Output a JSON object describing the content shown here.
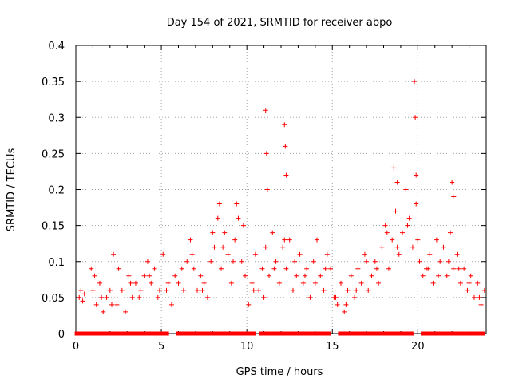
{
  "chart_data": {
    "type": "scatter",
    "title": "Day 154 of 2021, SRMTID for receiver abpo",
    "xlabel": "GPS time / hours",
    "ylabel": "SRMTID / TECUs",
    "xlim": [
      0,
      24
    ],
    "ylim": [
      0,
      0.4
    ],
    "grid": true,
    "marker": "+",
    "color": "#ff0000",
    "xticks": [
      0,
      5,
      10,
      15,
      20
    ],
    "yticks": [
      0,
      0.05,
      0.1,
      0.15,
      0.2,
      0.25,
      0.3,
      0.35,
      0.4
    ],
    "xtick_labels": [
      "0",
      "5",
      "10",
      "15",
      "20"
    ],
    "ytick_labels": [
      "0",
      "0.05",
      "0.1",
      "0.15",
      "0.2",
      "0.25",
      "0.3",
      "0.35",
      "0.4"
    ],
    "series": [
      {
        "name": "SRMTID",
        "x": [
          0.2,
          0.3,
          0.4,
          0.5,
          0.9,
          1.0,
          1.2,
          1.4,
          1.6,
          1.8,
          2.0,
          2.2,
          2.4,
          2.7,
          2.9,
          3.1,
          3.3,
          3.5,
          3.8,
          4.0,
          4.2,
          4.4,
          4.6,
          4.8,
          5.1,
          5.3,
          5.6,
          5.8,
          6.0,
          6.3,
          6.5,
          6.7,
          6.9,
          7.1,
          7.3,
          7.5,
          7.7,
          7.9,
          8.1,
          8.3,
          8.5,
          8.7,
          8.9,
          9.1,
          9.3,
          9.5,
          9.7,
          9.9,
          10.1,
          10.3,
          10.5,
          10.7,
          10.9,
          11.1,
          11.3,
          11.5,
          11.7,
          11.9,
          12.1,
          12.3,
          12.5,
          12.7,
          12.9,
          13.1,
          13.3,
          13.5,
          13.7,
          13.9,
          14.1,
          14.3,
          14.5,
          14.7,
          14.9,
          15.1,
          15.3,
          15.5,
          15.7,
          15.9,
          16.1,
          16.3,
          16.5,
          16.7,
          16.9,
          17.1,
          17.3,
          17.5,
          17.7,
          17.9,
          18.1,
          18.3,
          18.5,
          18.7,
          18.9,
          19.1,
          19.3,
          19.5,
          19.7,
          19.9,
          20.1,
          20.3,
          20.5,
          20.7,
          20.9,
          21.1,
          21.3,
          21.5,
          21.7,
          21.9,
          22.1,
          22.3,
          22.5,
          22.7,
          22.9,
          23.1,
          23.3,
          23.5,
          23.7,
          23.9,
          0.3,
          1.1,
          1.5,
          2.1,
          2.5,
          3.2,
          3.7,
          4.3,
          4.9,
          5.4,
          6.2,
          6.8,
          7.4,
          8.0,
          8.6,
          9.2,
          9.8,
          10.4,
          11.0,
          11.6,
          12.2,
          12.8,
          13.4,
          14.0,
          14.6,
          15.2,
          15.8,
          16.4,
          17.0,
          17.6,
          18.2,
          18.8,
          19.4,
          20.0,
          20.6,
          21.2,
          21.8,
          22.4,
          23.0,
          23.6,
          11.1,
          11.15,
          11.2,
          12.2,
          12.25,
          12.3,
          19.8,
          19.85,
          19.9,
          8.4,
          9.4,
          18.6,
          18.8,
          22.0,
          22.1
        ],
        "y": [
          0.05,
          0.06,
          0.045,
          0.055,
          0.09,
          0.06,
          0.04,
          0.07,
          0.03,
          0.05,
          0.06,
          0.11,
          0.04,
          0.06,
          0.03,
          0.08,
          0.05,
          0.07,
          0.06,
          0.08,
          0.1,
          0.07,
          0.09,
          0.05,
          0.11,
          0.06,
          0.04,
          0.08,
          0.07,
          0.06,
          0.1,
          0.13,
          0.09,
          0.06,
          0.08,
          0.07,
          0.05,
          0.1,
          0.12,
          0.16,
          0.09,
          0.14,
          0.11,
          0.07,
          0.13,
          0.16,
          0.1,
          0.08,
          0.04,
          0.07,
          0.11,
          0.06,
          0.09,
          0.12,
          0.08,
          0.14,
          0.1,
          0.07,
          0.12,
          0.09,
          0.13,
          0.06,
          0.08,
          0.11,
          0.07,
          0.09,
          0.05,
          0.1,
          0.13,
          0.08,
          0.06,
          0.11,
          0.09,
          0.05,
          0.04,
          0.07,
          0.03,
          0.06,
          0.08,
          0.05,
          0.09,
          0.07,
          0.11,
          0.06,
          0.08,
          0.1,
          0.07,
          0.12,
          0.15,
          0.09,
          0.13,
          0.17,
          0.11,
          0.14,
          0.2,
          0.16,
          0.12,
          0.18,
          0.1,
          0.08,
          0.09,
          0.11,
          0.07,
          0.13,
          0.1,
          0.12,
          0.08,
          0.14,
          0.09,
          0.11,
          0.07,
          0.09,
          0.06,
          0.08,
          0.05,
          0.07,
          0.04,
          0.06,
          0.06,
          0.08,
          0.05,
          0.04,
          0.09,
          0.07,
          0.05,
          0.08,
          0.06,
          0.07,
          0.09,
          0.11,
          0.06,
          0.14,
          0.12,
          0.1,
          0.15,
          0.06,
          0.05,
          0.09,
          0.13,
          0.1,
          0.08,
          0.07,
          0.09,
          0.05,
          0.04,
          0.06,
          0.1,
          0.09,
          0.14,
          0.12,
          0.15,
          0.13,
          0.09,
          0.08,
          0.1,
          0.09,
          0.07,
          0.05,
          0.31,
          0.25,
          0.2,
          0.29,
          0.26,
          0.22,
          0.35,
          0.3,
          0.22,
          0.18,
          0.18,
          0.23,
          0.21,
          0.21,
          0.19
        ]
      }
    ],
    "baseline_markers_y": 0
  }
}
